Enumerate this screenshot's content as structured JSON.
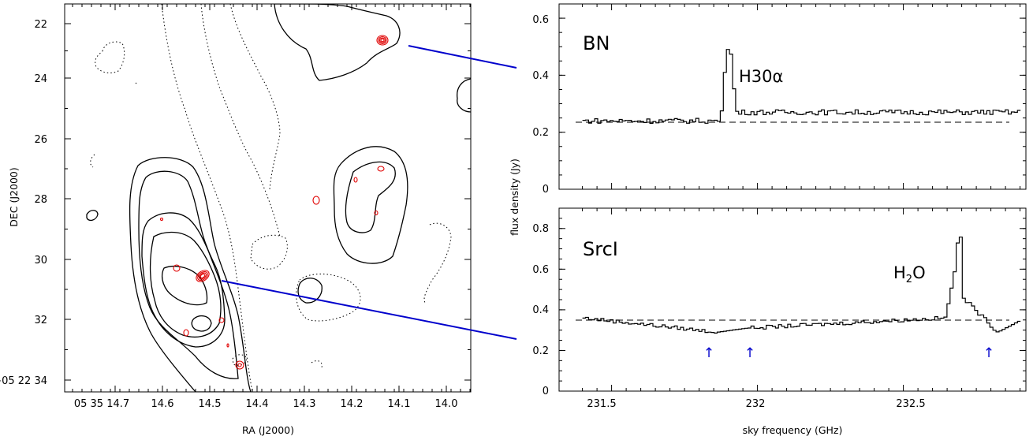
{
  "chart_data": [
    {
      "type": "contour",
      "xlabel": "RA (J2000)",
      "ylabel": "DEC (J2000)",
      "x_ticks": [
        "05 35 14.7",
        "14.6",
        "14.5",
        "14.4",
        "14.3",
        "14.2",
        "14.1",
        "14.0"
      ],
      "y_ticks": [
        "22",
        "24",
        "26",
        "28",
        "30",
        "32",
        "−05 22 34"
      ],
      "contour_colors": {
        "continuum": "#000000",
        "line": "#e00000",
        "connector": "#0000cc"
      }
    },
    {
      "type": "line",
      "label": "BN",
      "line_label": "H30α",
      "ylim": [
        0,
        0.65
      ],
      "yticks": [
        "0",
        "0.2",
        "0.4",
        "0.6"
      ],
      "xlim": [
        231.32,
        232.92
      ],
      "baseline": 0.24,
      "x": [
        231.4,
        231.87,
        231.88,
        231.89,
        231.9,
        231.91,
        231.92,
        232.9
      ],
      "y": [
        0.24,
        0.24,
        0.38,
        0.48,
        0.51,
        0.42,
        0.27,
        0.27
      ]
    },
    {
      "type": "line",
      "label": "SrcI",
      "line_label": "H",
      "line_label_sub": "2",
      "line_label_tail": "O",
      "ylim": [
        0,
        0.9
      ],
      "yticks": [
        "0",
        "0.2",
        "0.4",
        "0.6",
        "0.8"
      ],
      "xticks": [
        "231.5",
        "232",
        "232.5"
      ],
      "xlim": [
        231.32,
        232.92
      ],
      "baseline": 0.35,
      "x": [
        231.4,
        231.86,
        231.96,
        232.64,
        232.67,
        232.68,
        232.69,
        232.7,
        232.82,
        232.9
      ],
      "y": [
        0.36,
        0.29,
        0.31,
        0.36,
        0.58,
        0.72,
        0.81,
        0.46,
        0.29,
        0.35
      ],
      "arrows_x": [
        231.86,
        231.98,
        232.82
      ],
      "arrow_glyph": "↑"
    }
  ],
  "spectrum_axes": {
    "ylabel": "flux density (Jy)",
    "xlabel": "sky frequency (GHz)"
  }
}
